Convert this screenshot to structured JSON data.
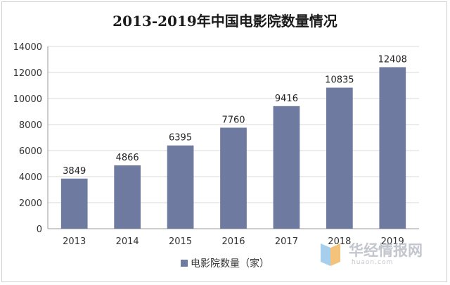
{
  "chart_data": {
    "type": "bar",
    "title": "2013-2019年中国电影院数量情况",
    "categories": [
      "2013",
      "2014",
      "2015",
      "2016",
      "2017",
      "2018",
      "2019"
    ],
    "series": [
      {
        "name": "电影院数量（家）",
        "values": [
          3849,
          4866,
          6395,
          7760,
          9416,
          10835,
          12408
        ]
      }
    ],
    "ylim": [
      0,
      14000
    ],
    "yticks": [
      0,
      2000,
      4000,
      6000,
      8000,
      10000,
      12000,
      14000
    ],
    "grid": true,
    "legend": "bottom",
    "bar_color": "#6f7aa0"
  },
  "watermark": {
    "text": "华经情报网",
    "subtext": "huaon.com"
  }
}
